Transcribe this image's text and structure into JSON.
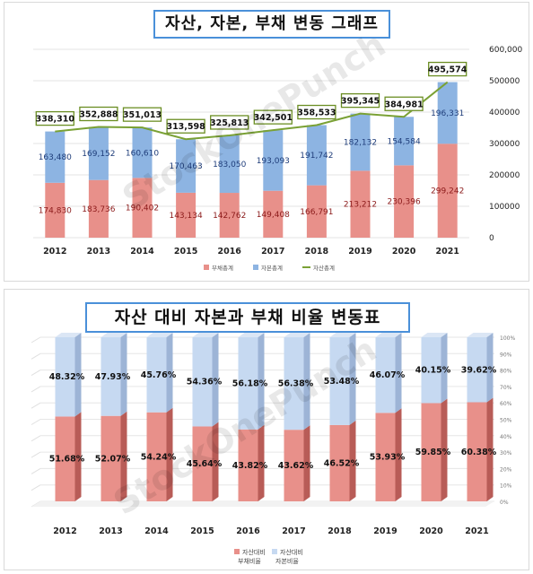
{
  "chart_data": [
    {
      "type": "bar",
      "stacked": true,
      "title": "자산, 자본, 부채 변동 그래프",
      "categories": [
        "2012",
        "2013",
        "2014",
        "2015",
        "2016",
        "2017",
        "2018",
        "2019",
        "2020",
        "2021"
      ],
      "series": [
        {
          "name": "부채총계",
          "kind": "bar",
          "color": "#e8908a",
          "values": [
            174830,
            183736,
            190402,
            143134,
            142762,
            149408,
            166791,
            213212,
            230396,
            299242
          ]
        },
        {
          "name": "자본총계",
          "kind": "bar",
          "color": "#8db4e2",
          "values": [
            163480,
            169152,
            160610,
            170463,
            183050,
            193093,
            191742,
            182132,
            154584,
            196331
          ]
        },
        {
          "name": "자산총계",
          "kind": "line",
          "color": "#7aa135",
          "values": [
            338310,
            352888,
            351013,
            313598,
            325813,
            342501,
            358533,
            395345,
            384981,
            495574
          ]
        }
      ],
      "ylim": [
        0,
        600000
      ],
      "yticks": [
        0,
        100000,
        200000,
        300000,
        400000,
        500000,
        600000
      ],
      "ytick_labels": [
        "0",
        "100000",
        "200000",
        "300000",
        "400000",
        "500000",
        "600,000"
      ],
      "bar_labels": {
        "debt": [
          "174,830",
          "183,736",
          "190,402",
          "143,134",
          "142,762",
          "149,408",
          "166,791",
          "213,212",
          "230,396",
          "299,242"
        ],
        "equity": [
          "163,480",
          "169,152",
          "160,610",
          "170,463",
          "183,050",
          "193,093",
          "191,742",
          "182,132",
          "154,584",
          "196,331"
        ],
        "assets": [
          "338,310",
          "352,888",
          "351,013",
          "313,598",
          "325,813",
          "342,501",
          "358,533",
          "395,345",
          "384,981",
          "495,574"
        ]
      },
      "legend_position": "bottom",
      "watermark": "StockOnePunch"
    },
    {
      "type": "bar",
      "stacked": true,
      "percent": true,
      "title": "자산 대비 자본과 부채 비율 변동표",
      "categories": [
        "2012",
        "2013",
        "2014",
        "2015",
        "2016",
        "2017",
        "2018",
        "2019",
        "2020",
        "2021"
      ],
      "series": [
        {
          "name": "자산대비 부채비율",
          "color": "#e8908a",
          "values": [
            51.68,
            52.07,
            54.24,
            45.64,
            43.82,
            43.62,
            46.52,
            53.93,
            59.85,
            60.38
          ]
        },
        {
          "name": "자산대비 자본비율",
          "color": "#c6d9f1",
          "values": [
            48.32,
            47.93,
            45.76,
            54.36,
            56.18,
            56.38,
            53.48,
            46.07,
            40.15,
            39.62
          ]
        }
      ],
      "legend_lines": [
        [
          "자산대비",
          "부채비율"
        ],
        [
          "자산대비",
          "자본비율"
        ]
      ],
      "ylim": [
        0,
        100
      ],
      "yticks": [
        0,
        10,
        20,
        30,
        40,
        50,
        60,
        70,
        80,
        90,
        100
      ],
      "ytick_labels": [
        "0%",
        "10%",
        "20%",
        "30%",
        "40%",
        "50%",
        "60%",
        "70%",
        "80%",
        "90%",
        "100%"
      ],
      "debt_labels": [
        "51.68%",
        "52.07%",
        "54.24%",
        "45.64%",
        "43.82%",
        "43.62%",
        "46.52%",
        "53.93%",
        "59.85%",
        "60.38%"
      ],
      "equity_labels": [
        "48.32%",
        "47.93%",
        "45.76%",
        "54.36%",
        "56.18%",
        "56.38%",
        "53.48%",
        "46.07%",
        "40.15%",
        "39.62%"
      ],
      "legend_position": "bottom",
      "watermark": "StockOnePunch"
    }
  ]
}
